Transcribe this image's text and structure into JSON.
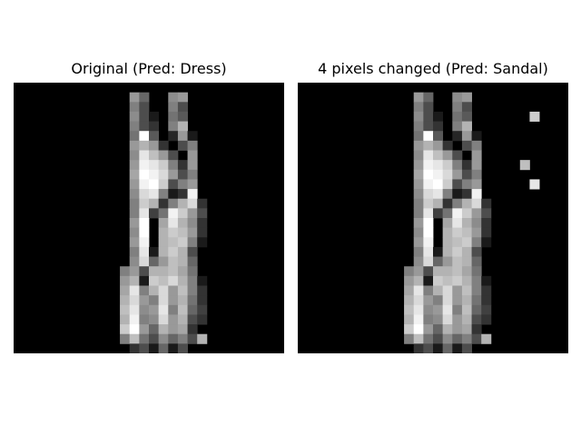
{
  "chart_data": [
    {
      "type": "heatmap",
      "title": "Original (Pred: Dress)",
      "colormap": "gray",
      "grid": false,
      "value_range": [
        0,
        1
      ],
      "matrix": [
        [
          0,
          0,
          0,
          0,
          0,
          0,
          0,
          0,
          0,
          0,
          0,
          0,
          0,
          0,
          0,
          0,
          0,
          0,
          0,
          0,
          0,
          0,
          0,
          0,
          0,
          0,
          0,
          0
        ],
        [
          0,
          0,
          0,
          0,
          0,
          0,
          0,
          0,
          0,
          0,
          0,
          0,
          0.6,
          0.4,
          0,
          0,
          0.55,
          0.6,
          0,
          0,
          0,
          0,
          0,
          0,
          0,
          0,
          0,
          0
        ],
        [
          0,
          0,
          0,
          0,
          0,
          0,
          0,
          0,
          0,
          0,
          0,
          0,
          0.5,
          0.3,
          0,
          0,
          0.5,
          0.3,
          0,
          0,
          0,
          0,
          0,
          0,
          0,
          0,
          0,
          0
        ],
        [
          0,
          0,
          0,
          0,
          0,
          0,
          0,
          0,
          0,
          0,
          0,
          0,
          0.55,
          0.3,
          0.1,
          0,
          0.45,
          0.35,
          0,
          0,
          0,
          0,
          0,
          0,
          0,
          0,
          0,
          0
        ],
        [
          0,
          0,
          0,
          0,
          0,
          0,
          0,
          0,
          0,
          0,
          0,
          0,
          0.5,
          0.3,
          0.2,
          0,
          0.5,
          0.7,
          0,
          0,
          0,
          0,
          0,
          0,
          0,
          0,
          0,
          0
        ],
        [
          0,
          0,
          0,
          0,
          0,
          0,
          0,
          0,
          0,
          0,
          0,
          0,
          0.45,
          1.0,
          0.35,
          0,
          0.15,
          0.6,
          0.1,
          0,
          0,
          0,
          0,
          0,
          0,
          0,
          0,
          0
        ],
        [
          0,
          0,
          0,
          0,
          0,
          0,
          0,
          0,
          0,
          0,
          0,
          0,
          0.6,
          0.7,
          0.6,
          0.2,
          0,
          0.3,
          0.5,
          0,
          0,
          0,
          0,
          0,
          0,
          0,
          0,
          0
        ],
        [
          0,
          0,
          0,
          0,
          0,
          0,
          0,
          0,
          0,
          0,
          0,
          0,
          0.55,
          0.9,
          0.75,
          0.6,
          0.3,
          0,
          0.6,
          0,
          0,
          0,
          0,
          0,
          0,
          0,
          0,
          0
        ],
        [
          0,
          0,
          0,
          0,
          0,
          0,
          0,
          0,
          0,
          0,
          0,
          0,
          0.6,
          0.95,
          0.9,
          0.8,
          0.5,
          0.2,
          0.6,
          0,
          0,
          0,
          0,
          0,
          0,
          0,
          0,
          0
        ],
        [
          0,
          0,
          0,
          0,
          0,
          0,
          0,
          0,
          0,
          0,
          0,
          0,
          0.65,
          1.0,
          0.95,
          0.85,
          0.6,
          0.3,
          0.5,
          0,
          0,
          0,
          0,
          0,
          0,
          0,
          0,
          0
        ],
        [
          0,
          0,
          0,
          0,
          0,
          0,
          0,
          0,
          0,
          0,
          0,
          0,
          0.6,
          0.95,
          1.0,
          0.8,
          0.3,
          0.5,
          0.6,
          0,
          0,
          0,
          0,
          0,
          0,
          0,
          0,
          0
        ],
        [
          0,
          0,
          0,
          0,
          0,
          0,
          0,
          0,
          0,
          0,
          0,
          0,
          0.55,
          0.85,
          0.9,
          0.5,
          0.1,
          0.2,
          0.95,
          0,
          0,
          0,
          0,
          0,
          0,
          0,
          0,
          0
        ],
        [
          0,
          0,
          0,
          0,
          0,
          0,
          0,
          0,
          0,
          0,
          0,
          0,
          0.5,
          0.8,
          0.7,
          0.2,
          0.5,
          0.7,
          0.85,
          0.2,
          0,
          0,
          0,
          0,
          0,
          0,
          0,
          0
        ],
        [
          0,
          0,
          0,
          0,
          0,
          0,
          0,
          0,
          0,
          0,
          0,
          0,
          0.5,
          0.9,
          0.25,
          0.45,
          0.95,
          0.8,
          0.6,
          0.3,
          0,
          0,
          0,
          0,
          0,
          0,
          0,
          0
        ],
        [
          0,
          0,
          0,
          0,
          0,
          0,
          0,
          0,
          0,
          0,
          0,
          0,
          0.6,
          1.0,
          0,
          0.65,
          0.9,
          0.7,
          0.55,
          0.2,
          0,
          0,
          0,
          0,
          0,
          0,
          0,
          0
        ],
        [
          0,
          0,
          0,
          0,
          0,
          0,
          0,
          0,
          0,
          0,
          0,
          0,
          0.55,
          1.0,
          0,
          0.7,
          0.8,
          0.75,
          0.6,
          0.2,
          0,
          0,
          0,
          0,
          0,
          0,
          0,
          0
        ],
        [
          0,
          0,
          0,
          0,
          0,
          0,
          0,
          0,
          0,
          0,
          0,
          0,
          0.6,
          0.95,
          0,
          0.7,
          0.75,
          0.8,
          0.5,
          0.1,
          0,
          0,
          0,
          0,
          0,
          0,
          0,
          0
        ],
        [
          0,
          0,
          0,
          0,
          0,
          0,
          0,
          0,
          0,
          0,
          0,
          0,
          0.5,
          0.9,
          0.1,
          0.7,
          0.8,
          0.7,
          0.3,
          0,
          0,
          0,
          0,
          0,
          0,
          0,
          0,
          0
        ],
        [
          0,
          0,
          0,
          0,
          0,
          0,
          0,
          0,
          0,
          0,
          0,
          0,
          0.55,
          0.85,
          0.4,
          0.6,
          0.75,
          0.7,
          0.4,
          0,
          0,
          0,
          0,
          0,
          0,
          0,
          0,
          0
        ],
        [
          0,
          0,
          0,
          0,
          0,
          0,
          0,
          0,
          0,
          0,
          0,
          0.5,
          0.6,
          0.3,
          0.7,
          0.7,
          0.75,
          0.65,
          0.45,
          0,
          0,
          0,
          0,
          0,
          0,
          0,
          0,
          0
        ],
        [
          0,
          0,
          0,
          0,
          0,
          0,
          0,
          0,
          0,
          0,
          0,
          0.6,
          0.7,
          0.1,
          0.8,
          0.75,
          0.85,
          0.7,
          0.5,
          0.1,
          0,
          0,
          0,
          0,
          0,
          0,
          0,
          0
        ],
        [
          0,
          0,
          0,
          0,
          0,
          0,
          0,
          0,
          0,
          0,
          0,
          0.65,
          0.9,
          0.5,
          0.7,
          0.85,
          0.6,
          0.75,
          0.5,
          0.2,
          0,
          0,
          0,
          0,
          0,
          0,
          0,
          0
        ],
        [
          0,
          0,
          0,
          0,
          0,
          0,
          0,
          0,
          0,
          0,
          0,
          0.7,
          0.85,
          0.6,
          0.5,
          0.85,
          0.6,
          0.7,
          0.45,
          0.2,
          0,
          0,
          0,
          0,
          0,
          0,
          0,
          0
        ],
        [
          0,
          0,
          0,
          0,
          0,
          0,
          0,
          0,
          0,
          0,
          0,
          0.75,
          0.9,
          0.55,
          0.6,
          0.9,
          0.5,
          0.75,
          0.4,
          0.25,
          0,
          0,
          0,
          0,
          0,
          0,
          0,
          0
        ],
        [
          0,
          0,
          0,
          0,
          0,
          0,
          0,
          0,
          0,
          0,
          0,
          0.7,
          0.95,
          0.5,
          0.55,
          0.85,
          0.6,
          0.7,
          0.3,
          0.2,
          0,
          0,
          0,
          0,
          0,
          0,
          0,
          0
        ],
        [
          0,
          0,
          0,
          0,
          0,
          0,
          0,
          0,
          0,
          0,
          0,
          0.8,
          1.0,
          0.6,
          0.4,
          0.7,
          0.6,
          0.65,
          0.2,
          0,
          0,
          0,
          0,
          0,
          0,
          0,
          0,
          0
        ],
        [
          0,
          0,
          0,
          0,
          0,
          0,
          0,
          0,
          0,
          0,
          0,
          0.5,
          0.75,
          0.45,
          0.3,
          0.55,
          0.4,
          0.5,
          0.3,
          0.7,
          0,
          0,
          0,
          0,
          0,
          0,
          0,
          0
        ],
        [
          0,
          0,
          0,
          0,
          0,
          0,
          0,
          0,
          0,
          0,
          0,
          0,
          0.2,
          0.3,
          0.1,
          0.4,
          0.1,
          0.3,
          0,
          0,
          0,
          0,
          0,
          0,
          0,
          0,
          0,
          0
        ]
      ]
    },
    {
      "type": "heatmap",
      "title": "4 pixels changed (Pred: Sandal)",
      "colormap": "gray",
      "grid": false,
      "value_range": [
        0,
        1
      ],
      "base": "same as first panel",
      "changed_pixels": [
        {
          "row": 3,
          "col": 24,
          "value": 0.8
        },
        {
          "row": 8,
          "col": 23,
          "value": 0.75
        },
        {
          "row": 10,
          "col": 24,
          "value": 0.9
        },
        {
          "row": 20,
          "col": 16,
          "value": 0.8
        }
      ]
    }
  ]
}
